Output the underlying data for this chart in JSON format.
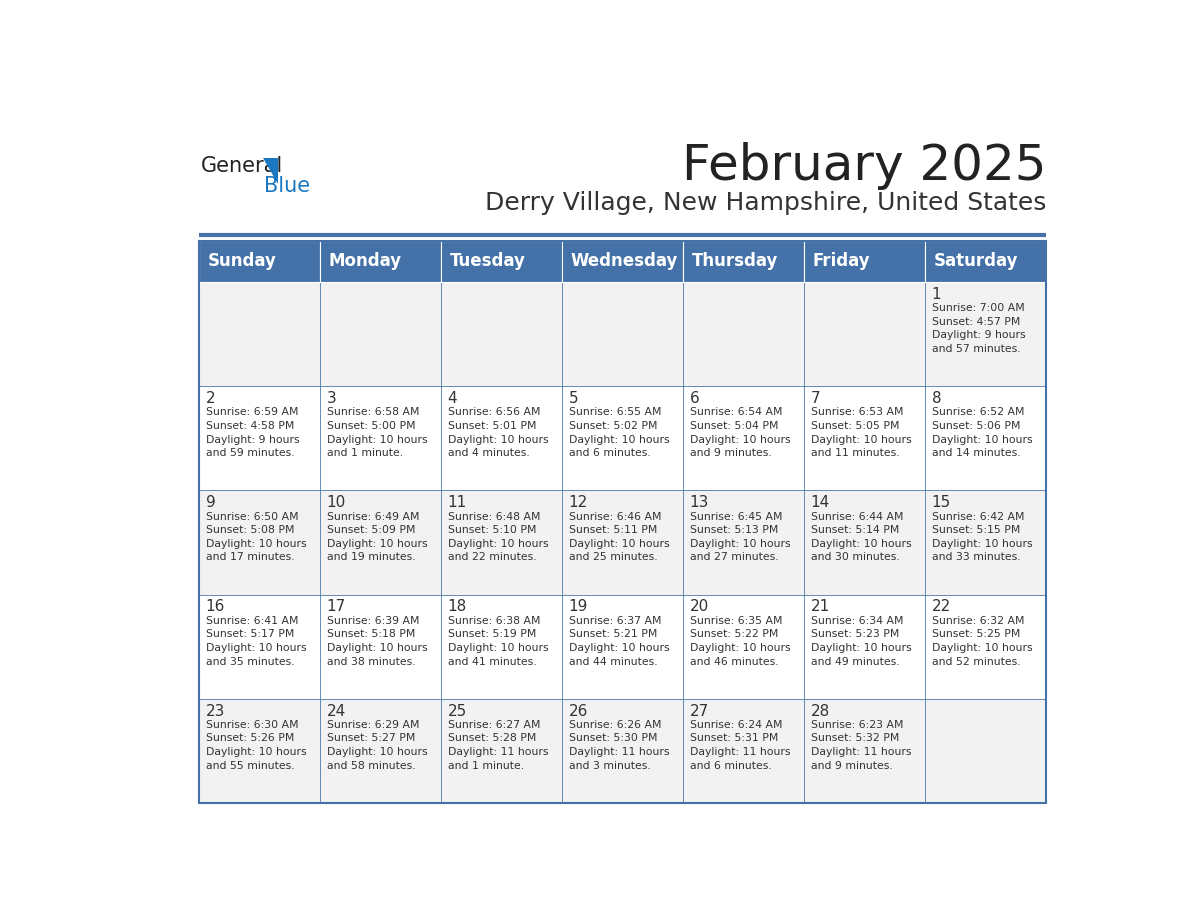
{
  "title": "February 2025",
  "subtitle": "Derry Village, New Hampshire, United States",
  "header_color": "#4472a8",
  "header_text_color": "#ffffff",
  "cell_bg_odd": "#f2f2f2",
  "cell_bg_even": "#ffffff",
  "border_color": "#4472a8",
  "title_color": "#222222",
  "subtitle_color": "#333333",
  "day_text_color": "#333333",
  "days_of_week": [
    "Sunday",
    "Monday",
    "Tuesday",
    "Wednesday",
    "Thursday",
    "Friday",
    "Saturday"
  ],
  "weeks": [
    [
      {
        "day": null,
        "sunrise": null,
        "sunset": null,
        "daylight": null
      },
      {
        "day": null,
        "sunrise": null,
        "sunset": null,
        "daylight": null
      },
      {
        "day": null,
        "sunrise": null,
        "sunset": null,
        "daylight": null
      },
      {
        "day": null,
        "sunrise": null,
        "sunset": null,
        "daylight": null
      },
      {
        "day": null,
        "sunrise": null,
        "sunset": null,
        "daylight": null
      },
      {
        "day": null,
        "sunrise": null,
        "sunset": null,
        "daylight": null
      },
      {
        "day": 1,
        "sunrise": "7:00 AM",
        "sunset": "4:57 PM",
        "daylight": "9 hours\nand 57 minutes."
      }
    ],
    [
      {
        "day": 2,
        "sunrise": "6:59 AM",
        "sunset": "4:58 PM",
        "daylight": "9 hours\nand 59 minutes."
      },
      {
        "day": 3,
        "sunrise": "6:58 AM",
        "sunset": "5:00 PM",
        "daylight": "10 hours\nand 1 minute."
      },
      {
        "day": 4,
        "sunrise": "6:56 AM",
        "sunset": "5:01 PM",
        "daylight": "10 hours\nand 4 minutes."
      },
      {
        "day": 5,
        "sunrise": "6:55 AM",
        "sunset": "5:02 PM",
        "daylight": "10 hours\nand 6 minutes."
      },
      {
        "day": 6,
        "sunrise": "6:54 AM",
        "sunset": "5:04 PM",
        "daylight": "10 hours\nand 9 minutes."
      },
      {
        "day": 7,
        "sunrise": "6:53 AM",
        "sunset": "5:05 PM",
        "daylight": "10 hours\nand 11 minutes."
      },
      {
        "day": 8,
        "sunrise": "6:52 AM",
        "sunset": "5:06 PM",
        "daylight": "10 hours\nand 14 minutes."
      }
    ],
    [
      {
        "day": 9,
        "sunrise": "6:50 AM",
        "sunset": "5:08 PM",
        "daylight": "10 hours\nand 17 minutes."
      },
      {
        "day": 10,
        "sunrise": "6:49 AM",
        "sunset": "5:09 PM",
        "daylight": "10 hours\nand 19 minutes."
      },
      {
        "day": 11,
        "sunrise": "6:48 AM",
        "sunset": "5:10 PM",
        "daylight": "10 hours\nand 22 minutes."
      },
      {
        "day": 12,
        "sunrise": "6:46 AM",
        "sunset": "5:11 PM",
        "daylight": "10 hours\nand 25 minutes."
      },
      {
        "day": 13,
        "sunrise": "6:45 AM",
        "sunset": "5:13 PM",
        "daylight": "10 hours\nand 27 minutes."
      },
      {
        "day": 14,
        "sunrise": "6:44 AM",
        "sunset": "5:14 PM",
        "daylight": "10 hours\nand 30 minutes."
      },
      {
        "day": 15,
        "sunrise": "6:42 AM",
        "sunset": "5:15 PM",
        "daylight": "10 hours\nand 33 minutes."
      }
    ],
    [
      {
        "day": 16,
        "sunrise": "6:41 AM",
        "sunset": "5:17 PM",
        "daylight": "10 hours\nand 35 minutes."
      },
      {
        "day": 17,
        "sunrise": "6:39 AM",
        "sunset": "5:18 PM",
        "daylight": "10 hours\nand 38 minutes."
      },
      {
        "day": 18,
        "sunrise": "6:38 AM",
        "sunset": "5:19 PM",
        "daylight": "10 hours\nand 41 minutes."
      },
      {
        "day": 19,
        "sunrise": "6:37 AM",
        "sunset": "5:21 PM",
        "daylight": "10 hours\nand 44 minutes."
      },
      {
        "day": 20,
        "sunrise": "6:35 AM",
        "sunset": "5:22 PM",
        "daylight": "10 hours\nand 46 minutes."
      },
      {
        "day": 21,
        "sunrise": "6:34 AM",
        "sunset": "5:23 PM",
        "daylight": "10 hours\nand 49 minutes."
      },
      {
        "day": 22,
        "sunrise": "6:32 AM",
        "sunset": "5:25 PM",
        "daylight": "10 hours\nand 52 minutes."
      }
    ],
    [
      {
        "day": 23,
        "sunrise": "6:30 AM",
        "sunset": "5:26 PM",
        "daylight": "10 hours\nand 55 minutes."
      },
      {
        "day": 24,
        "sunrise": "6:29 AM",
        "sunset": "5:27 PM",
        "daylight": "10 hours\nand 58 minutes."
      },
      {
        "day": 25,
        "sunrise": "6:27 AM",
        "sunset": "5:28 PM",
        "daylight": "11 hours\nand 1 minute."
      },
      {
        "day": 26,
        "sunrise": "6:26 AM",
        "sunset": "5:30 PM",
        "daylight": "11 hours\nand 3 minutes."
      },
      {
        "day": 27,
        "sunrise": "6:24 AM",
        "sunset": "5:31 PM",
        "daylight": "11 hours\nand 6 minutes."
      },
      {
        "day": 28,
        "sunrise": "6:23 AM",
        "sunset": "5:32 PM",
        "daylight": "11 hours\nand 9 minutes."
      },
      {
        "day": null,
        "sunrise": null,
        "sunset": null,
        "daylight": null
      }
    ]
  ]
}
